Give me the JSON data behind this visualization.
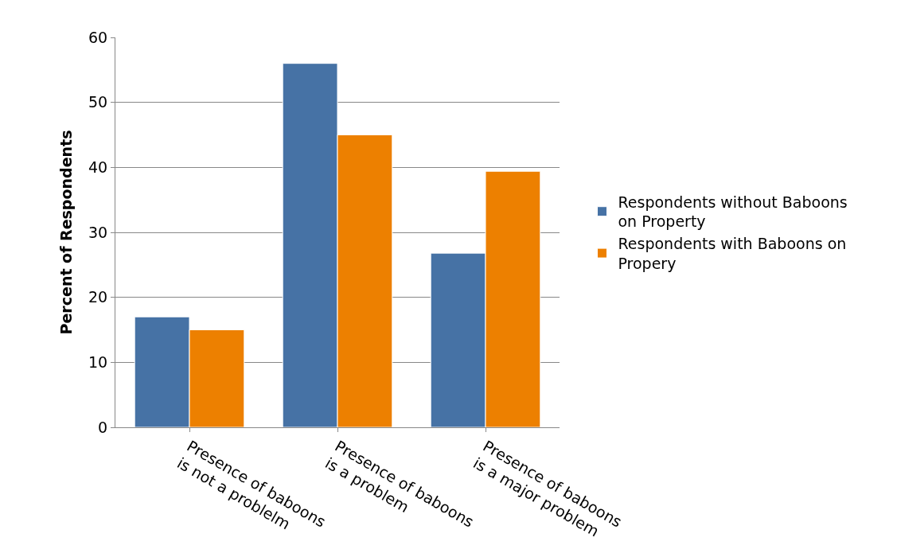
{
  "chart_data": {
    "type": "bar",
    "ylabel": "Percent of Respondents",
    "categories": [
      "Presence of baboons is not a problelm",
      "Presence of baboons is a problem",
      "Presence of baboons is a major problem"
    ],
    "series": [
      {
        "name": "Respondents without Baboons on Property",
        "color": "#4672a5",
        "values": [
          17,
          56,
          26.8
        ]
      },
      {
        "name": "Respondents with Baboons on Propery",
        "color": "#ed8000",
        "values": [
          15,
          45,
          39.4
        ]
      }
    ],
    "ylim": [
      0,
      60
    ],
    "yticks": [
      0,
      10,
      20,
      30,
      40,
      50,
      60
    ],
    "grid": "y",
    "legend": "right"
  }
}
